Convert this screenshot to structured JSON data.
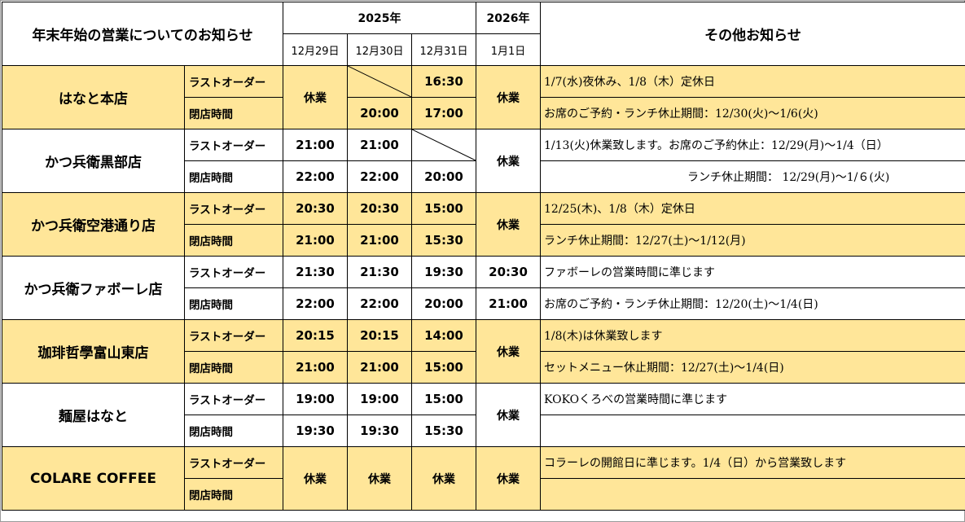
{
  "header": {
    "title": "年末年始の営業についてのお知らせ",
    "year1": "2025年",
    "year2": "2026年",
    "other": "その他お知らせ",
    "dates": [
      "12月29日",
      "12月30日",
      "12月31日",
      "1月1日"
    ]
  },
  "labels": {
    "last_order": "ラストオーダー",
    "closing": "閉店時間"
  },
  "stores": [
    {
      "name": "はなと本店",
      "closed_12_29": "休業",
      "lo_12_31": "16:30",
      "cl_12_30": "20:00",
      "cl_12_31": "17:00",
      "closed_1_1": "休業",
      "note1": "1/7(水)夜休み、1/8（木）定休日",
      "note2": "お席のご予約・ランチ休止期間：12/30(火)～1/6(火)"
    },
    {
      "name": "かつ兵衛黒部店",
      "lo_12_29": "21:00",
      "lo_12_30": "21:00",
      "cl_12_29": "22:00",
      "cl_12_30": "22:00",
      "cl_12_31": "20:00",
      "closed_1_1": "休業",
      "note1": "1/13(火)休業致します。お席のご予約休止：12/29(月)～1/4（日）",
      "note2": "ランチ休止期間：  12/29(月)～1/６(火)"
    },
    {
      "name": "かつ兵衛空港通り店",
      "lo_12_29": "20:30",
      "lo_12_30": "20:30",
      "lo_12_31": "15:00",
      "cl_12_29": "21:00",
      "cl_12_30": "21:00",
      "cl_12_31": "15:30",
      "closed_1_1": "休業",
      "note1": "12/25(木)、1/8（木）定休日",
      "note2": "ランチ休止期間：12/27(土)～1/12(月)"
    },
    {
      "name": "かつ兵衛ファボーレ店",
      "lo_12_29": "21:30",
      "lo_12_30": "21:30",
      "lo_12_31": "19:30",
      "lo_1_1": "20:30",
      "cl_12_29": "22:00",
      "cl_12_30": "22:00",
      "cl_12_31": "20:00",
      "cl_1_1": "21:00",
      "note1": "ファボーレの営業時間に準じます",
      "note2": "お席のご予約・ランチ休止期間：12/20(土)～1/4(日)"
    },
    {
      "name": "珈琲哲學富山東店",
      "lo_12_29": "20:15",
      "lo_12_30": "20:15",
      "lo_12_31": "14:00",
      "cl_12_29": "21:00",
      "cl_12_30": "21:00",
      "cl_12_31": "15:00",
      "closed_1_1": "休業",
      "note1": "1/8(木)は休業致します",
      "note2": "セットメニュー休止期間：12/27(土)～1/4(日)"
    },
    {
      "name": "麺屋はなと",
      "lo_12_29": "19:00",
      "lo_12_30": "19:00",
      "lo_12_31": "15:00",
      "cl_12_29": "19:30",
      "cl_12_30": "19:30",
      "cl_12_31": "15:30",
      "closed_1_1": "休業",
      "note1": "KOKOくろべの営業時間に準じます",
      "note2": ""
    },
    {
      "name": "COLARE COFFEE",
      "closed_12_29": "休業",
      "closed_12_30": "休業",
      "closed_12_31": "休業",
      "closed_1_1": "休業",
      "note1": "コラーレの開館日に準じます。1/4（日）から営業致します",
      "note2": ""
    }
  ],
  "colors": {
    "highlight": "#ffe699",
    "plain": "#ffffff",
    "border": "#000000"
  }
}
